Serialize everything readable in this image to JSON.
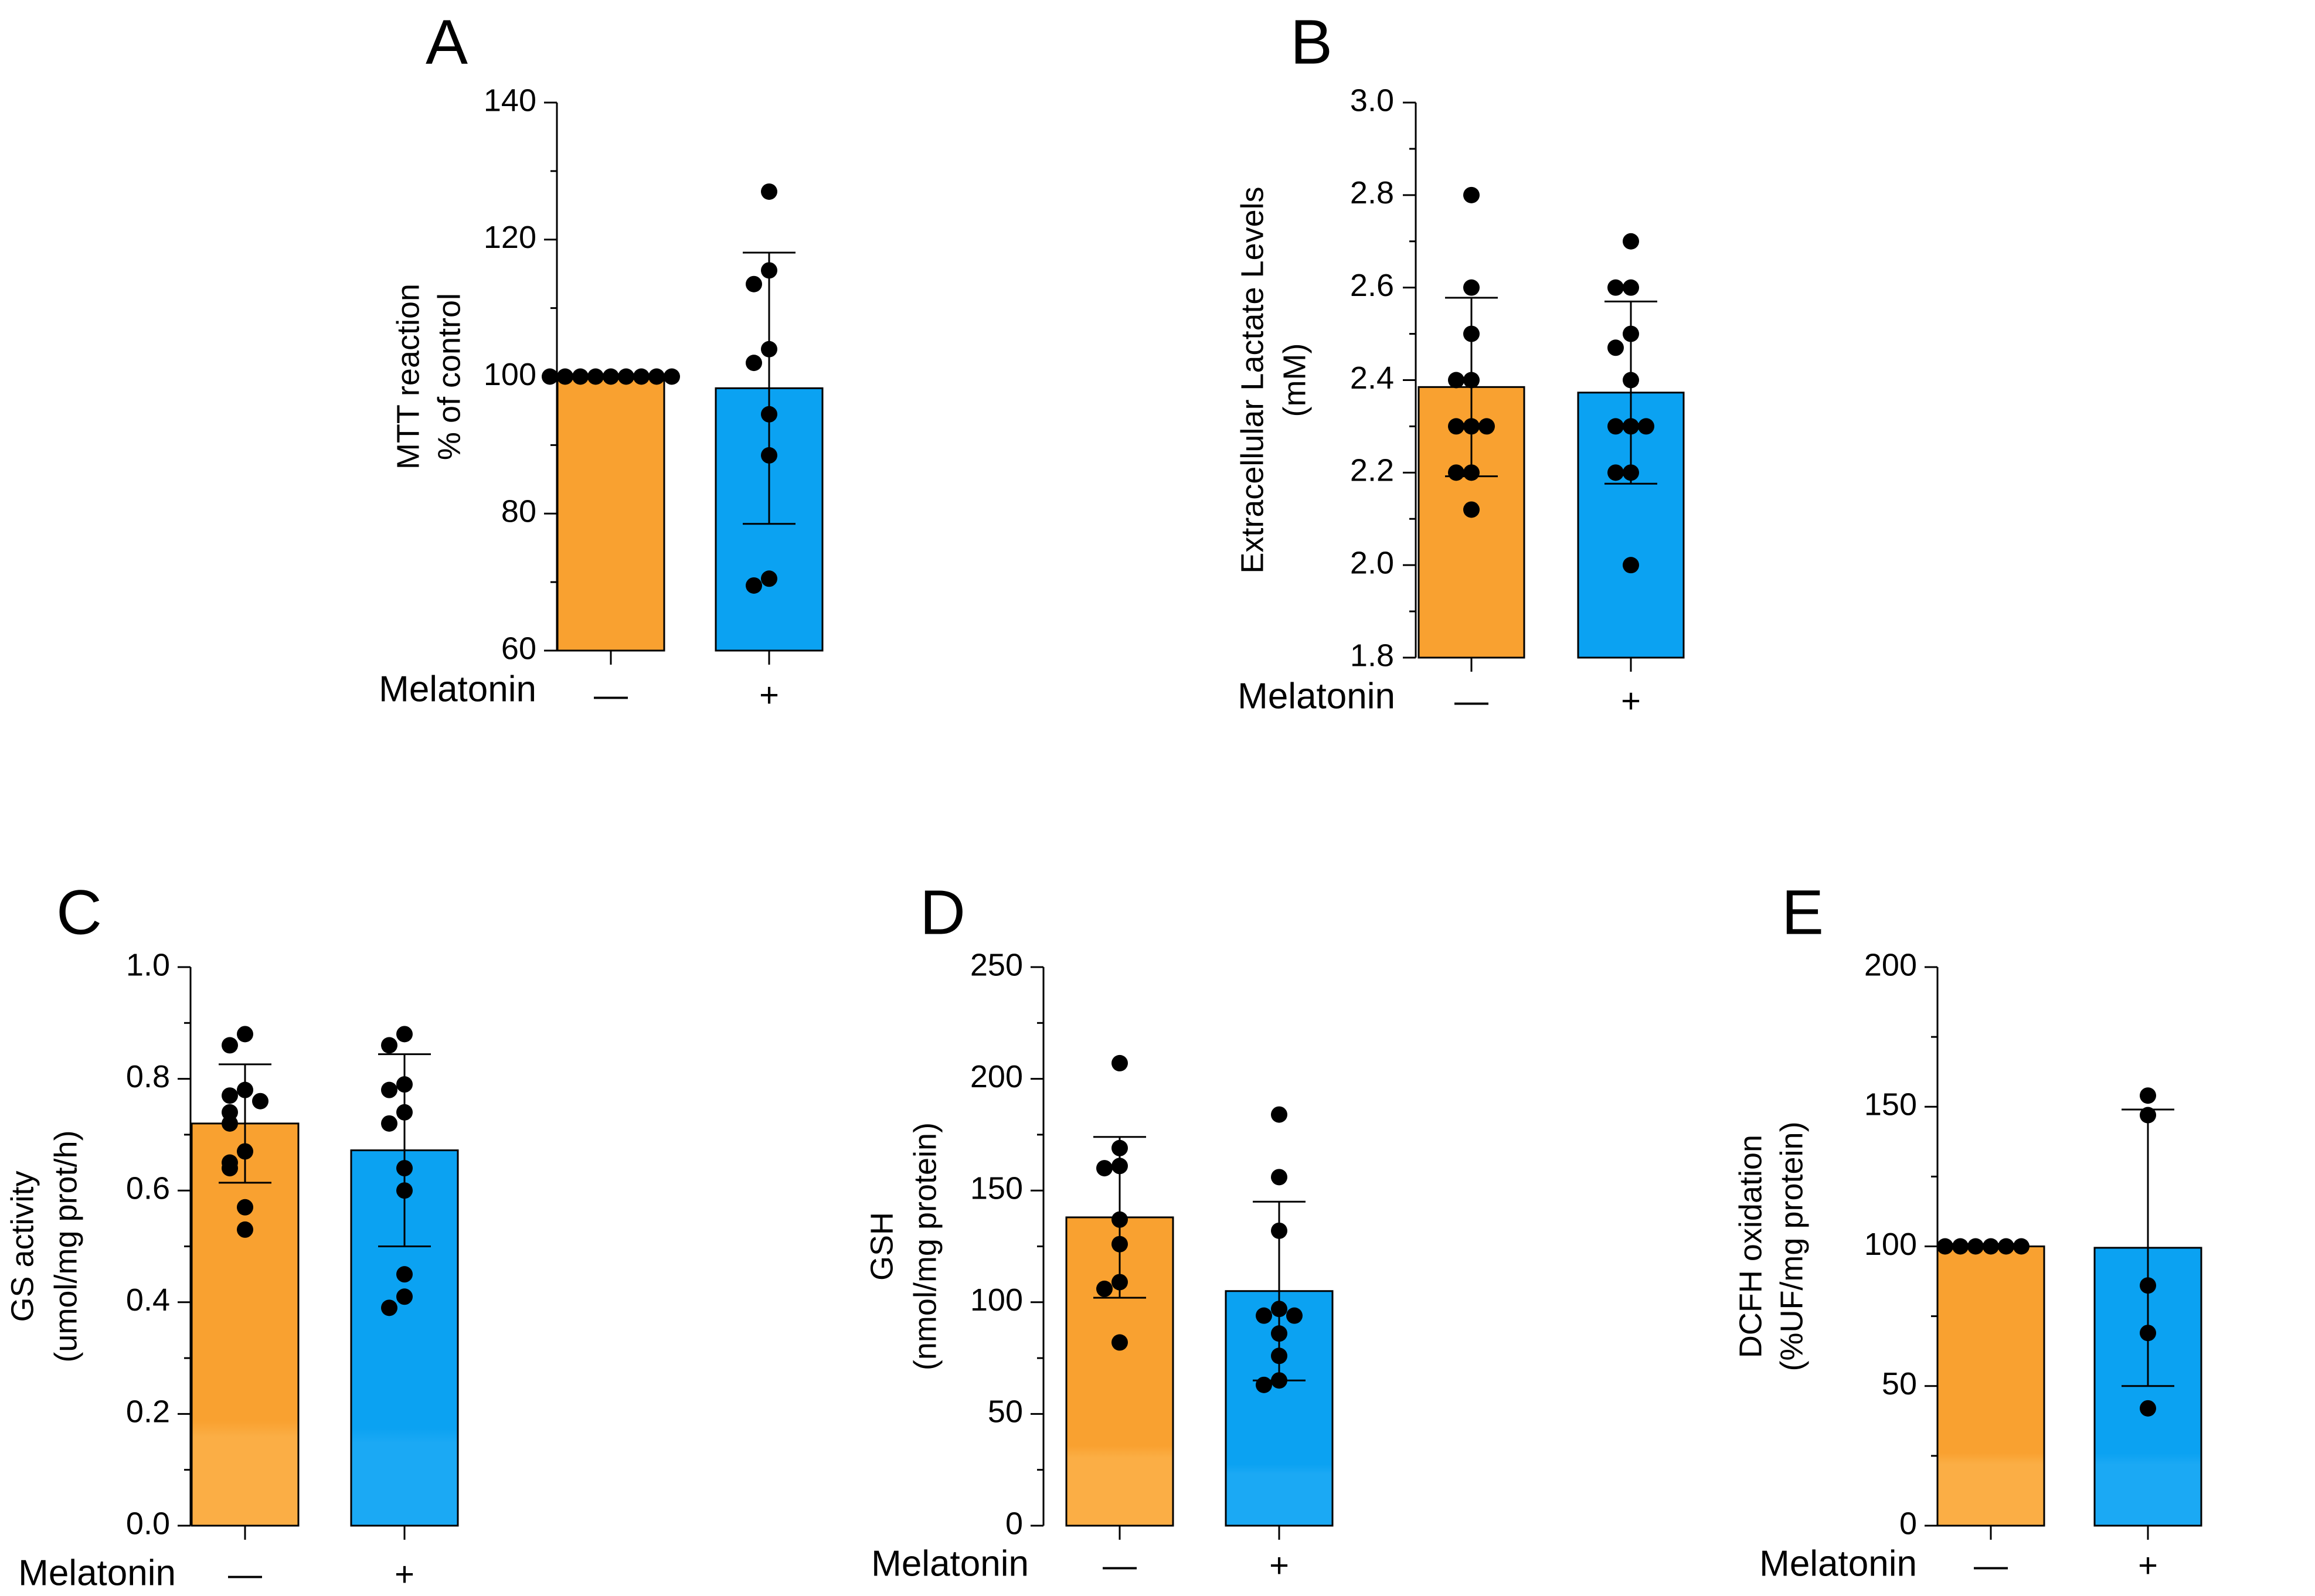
{
  "colors": {
    "minus_bar": "#F9A130",
    "plus_bar": "#0BA2F2",
    "outline": "#000000"
  },
  "chart_data": [
    {
      "id": "A",
      "type": "bar",
      "panel_label": "A",
      "ylabel_lines": [
        "MTT reaction",
        "% of control"
      ],
      "ylim": [
        60,
        140
      ],
      "yticks": [
        60,
        80,
        100,
        120,
        140
      ],
      "tick_decimals": 0,
      "group_label": "Melatonin",
      "categories": [
        "—",
        "+"
      ],
      "means": [
        100,
        98.3
      ],
      "sd": [
        0,
        19.8
      ],
      "points": [
        [
          100,
          100,
          100,
          100,
          100,
          100,
          100,
          100,
          100
        ],
        [
          127,
          115.5,
          113.5,
          104,
          102,
          94.5,
          88.5,
          70.5,
          69.5
        ]
      ]
    },
    {
      "id": "B",
      "type": "bar",
      "panel_label": "B",
      "ylabel_lines": [
        "Extracellular Lactate Levels",
        "(mM)"
      ],
      "ylim": [
        1.8,
        3.0
      ],
      "yticks": [
        1.8,
        2.0,
        2.2,
        2.4,
        2.6,
        2.8,
        3.0
      ],
      "tick_decimals": 1,
      "group_label": "Melatonin",
      "categories": [
        "—",
        "+"
      ],
      "means": [
        2.385,
        2.373
      ],
      "sd": [
        0.193,
        0.197
      ],
      "points": [
        [
          2.8,
          2.6,
          2.5,
          2.4,
          2.4,
          2.3,
          2.3,
          2.3,
          2.2,
          2.2,
          2.12
        ],
        [
          2.7,
          2.6,
          2.6,
          2.5,
          2.47,
          2.4,
          2.3,
          2.3,
          2.3,
          2.2,
          2.2,
          2.0
        ]
      ]
    },
    {
      "id": "C",
      "type": "bar",
      "panel_label": "C",
      "ylabel_lines": [
        "GS activity",
        "(umol/mg prot/h)"
      ],
      "ylim": [
        0,
        1.0
      ],
      "yticks": [
        0,
        0.2,
        0.4,
        0.6,
        0.8,
        1.0
      ],
      "tick_decimals": 1,
      "group_label": "Melatonin",
      "categories": [
        "—",
        "+"
      ],
      "means": [
        0.72,
        0.672
      ],
      "sd": [
        0.106,
        0.172
      ],
      "points": [
        [
          0.88,
          0.86,
          0.78,
          0.77,
          0.76,
          0.74,
          0.72,
          0.67,
          0.65,
          0.64,
          0.57,
          0.53
        ],
        [
          0.88,
          0.86,
          0.79,
          0.78,
          0.74,
          0.72,
          0.64,
          0.6,
          0.45,
          0.41,
          0.39
        ]
      ]
    },
    {
      "id": "D",
      "type": "bar",
      "panel_label": "D",
      "ylabel_lines": [
        "GSH",
        "(nmol/mg protein)"
      ],
      "ylim": [
        0,
        250
      ],
      "yticks": [
        0,
        50,
        100,
        150,
        200,
        250
      ],
      "tick_decimals": 0,
      "group_label": "Melatonin",
      "categories": [
        "—",
        "+"
      ],
      "means": [
        138,
        105
      ],
      "sd": [
        36,
        40
      ],
      "points": [
        [
          207,
          169,
          161,
          160,
          137,
          126,
          109,
          106,
          82
        ],
        [
          184,
          156,
          132,
          97,
          94,
          94,
          86,
          76,
          65,
          63
        ]
      ]
    },
    {
      "id": "E",
      "type": "bar",
      "panel_label": "E",
      "ylabel_lines": [
        "DCFH oxidation",
        "(%UF/mg protein)"
      ],
      "ylim": [
        0,
        200
      ],
      "yticks": [
        0,
        50,
        100,
        150,
        200
      ],
      "tick_decimals": 0,
      "group_label": "Melatonin",
      "categories": [
        "—",
        "+"
      ],
      "means": [
        100,
        99.5
      ],
      "sd": [
        0,
        49.5
      ],
      "points": [
        [
          100,
          100,
          100,
          100,
          100,
          100
        ],
        [
          154,
          147,
          86,
          69,
          42
        ]
      ]
    }
  ]
}
